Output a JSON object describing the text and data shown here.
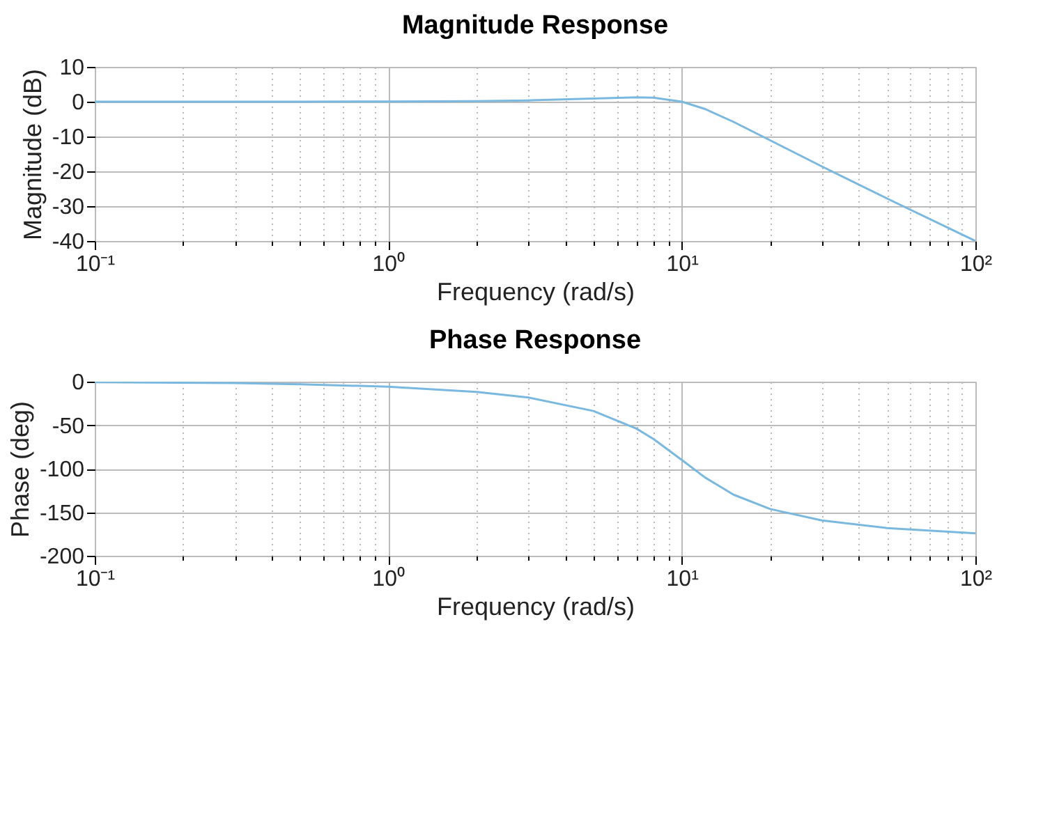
{
  "chart_data": [
    {
      "type": "line",
      "title": "Magnitude Response",
      "xlabel": "Frequency (rad/s)",
      "ylabel": "Magnitude (dB)",
      "log": "x",
      "grid": true,
      "x": [
        0.1,
        0.3,
        0.5,
        1,
        2,
        3,
        5,
        7,
        8,
        10,
        12,
        15,
        20,
        30,
        50,
        100
      ],
      "series": [
        {
          "color": "#7ab8e0",
          "values": [
            0,
            0,
            0.01,
            0.04,
            0.17,
            0.37,
            0.9,
            1.25,
            1.14,
            0,
            -2.1,
            -5.8,
            -11.1,
            -18.6,
            -27.8,
            -40
          ]
        }
      ],
      "xlim": [
        0.1,
        100
      ],
      "xticks": [
        {
          "value": 0.1,
          "label": "10⁻¹"
        },
        {
          "value": 0.2,
          "label": null
        },
        {
          "value": 0.3,
          "label": null
        },
        {
          "value": 0.4,
          "label": null
        },
        {
          "value": 0.5,
          "label": null
        },
        {
          "value": 0.6,
          "label": null
        },
        {
          "value": 0.7,
          "label": null
        },
        {
          "value": 0.8,
          "label": null
        },
        {
          "value": 0.9,
          "label": null
        },
        {
          "value": 1,
          "label": "10⁰"
        },
        {
          "value": 2,
          "label": null
        },
        {
          "value": 3,
          "label": null
        },
        {
          "value": 4,
          "label": null
        },
        {
          "value": 5,
          "label": null
        },
        {
          "value": 6,
          "label": null
        },
        {
          "value": 7,
          "label": null
        },
        {
          "value": 8,
          "label": null
        },
        {
          "value": 9,
          "label": null
        },
        {
          "value": 10,
          "label": "10¹"
        },
        {
          "value": 20,
          "label": null
        },
        {
          "value": 30,
          "label": null
        },
        {
          "value": 40,
          "label": null
        },
        {
          "value": 50,
          "label": null
        },
        {
          "value": 60,
          "label": null
        },
        {
          "value": 70,
          "label": null
        },
        {
          "value": 80,
          "label": null
        },
        {
          "value": 90,
          "label": null
        },
        {
          "value": 100,
          "label": "10²"
        }
      ],
      "ylim": [
        -40,
        10
      ],
      "yticks": [
        10,
        0,
        -10,
        -20,
        -30,
        -40
      ]
    },
    {
      "type": "line",
      "title": "Phase Response",
      "xlabel": "Frequency (rad/s)",
      "ylabel": "Phase (deg)",
      "log": "x",
      "grid": true,
      "x": [
        0.1,
        0.3,
        0.5,
        1,
        2,
        3,
        5,
        7,
        8,
        10,
        12,
        15,
        20,
        30,
        50,
        100
      ],
      "series": [
        {
          "color": "#7ab8e0",
          "values": [
            -0.6,
            -1.7,
            -2.9,
            -5.8,
            -11.8,
            -18.2,
            -33.7,
            -53.9,
            -65.8,
            -90,
            -110.1,
            -129.8,
            -146.3,
            -159.4,
            -168.2,
            -174.2
          ]
        }
      ],
      "xlim": [
        0.1,
        100
      ],
      "xticks": [
        {
          "value": 0.1,
          "label": "10⁻¹"
        },
        {
          "value": 0.2,
          "label": null
        },
        {
          "value": 0.3,
          "label": null
        },
        {
          "value": 0.4,
          "label": null
        },
        {
          "value": 0.5,
          "label": null
        },
        {
          "value": 0.6,
          "label": null
        },
        {
          "value": 0.7,
          "label": null
        },
        {
          "value": 0.8,
          "label": null
        },
        {
          "value": 0.9,
          "label": null
        },
        {
          "value": 1,
          "label": "10⁰"
        },
        {
          "value": 2,
          "label": null
        },
        {
          "value": 3,
          "label": null
        },
        {
          "value": 4,
          "label": null
        },
        {
          "value": 5,
          "label": null
        },
        {
          "value": 6,
          "label": null
        },
        {
          "value": 7,
          "label": null
        },
        {
          "value": 8,
          "label": null
        },
        {
          "value": 9,
          "label": null
        },
        {
          "value": 10,
          "label": "10¹"
        },
        {
          "value": 20,
          "label": null
        },
        {
          "value": 30,
          "label": null
        },
        {
          "value": 40,
          "label": null
        },
        {
          "value": 50,
          "label": null
        },
        {
          "value": 60,
          "label": null
        },
        {
          "value": 70,
          "label": null
        },
        {
          "value": 80,
          "label": null
        },
        {
          "value": 90,
          "label": null
        },
        {
          "value": 100,
          "label": "10²"
        }
      ],
      "ylim": [
        -200,
        0
      ],
      "yticks": [
        0,
        -50,
        -100,
        -150,
        -200
      ]
    }
  ]
}
